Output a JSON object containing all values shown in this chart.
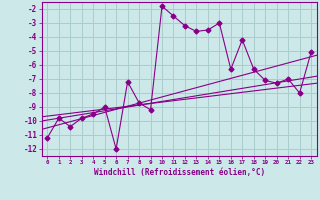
{
  "xlabel": "Windchill (Refroidissement éolien,°C)",
  "bg_color": "#cde8e8",
  "grid_color": "#aacccc",
  "line_color": "#880088",
  "x_data": [
    0,
    1,
    2,
    3,
    4,
    5,
    6,
    7,
    8,
    9,
    10,
    11,
    12,
    13,
    14,
    15,
    16,
    17,
    18,
    19,
    20,
    21,
    22,
    23
  ],
  "y_data": [
    -11.2,
    -9.8,
    -10.4,
    -9.8,
    -9.5,
    -9.0,
    -12.0,
    -7.2,
    -8.7,
    -9.2,
    -1.8,
    -2.5,
    -3.2,
    -3.6,
    -3.5,
    -3.0,
    -6.3,
    -4.2,
    -6.3,
    -7.1,
    -7.3,
    -7.0,
    -8.0,
    -5.1
  ],
  "reg_line1_x": [
    -0.5,
    23.5
  ],
  "reg_line1_y": [
    -10.6,
    -5.3
  ],
  "reg_line2_x": [
    -0.5,
    23.5
  ],
  "reg_line2_y": [
    -10.0,
    -6.8
  ],
  "reg_line3_x": [
    -0.5,
    23.5
  ],
  "reg_line3_y": [
    -9.7,
    -7.3
  ],
  "xlim": [
    -0.5,
    23.5
  ],
  "ylim": [
    -12.5,
    -1.5
  ],
  "yticks": [
    -12,
    -11,
    -10,
    -9,
    -8,
    -7,
    -6,
    -5,
    -4,
    -3,
    -2
  ],
  "xticks": [
    0,
    1,
    2,
    3,
    4,
    5,
    6,
    7,
    8,
    9,
    10,
    11,
    12,
    13,
    14,
    15,
    16,
    17,
    18,
    19,
    20,
    21,
    22,
    23
  ]
}
